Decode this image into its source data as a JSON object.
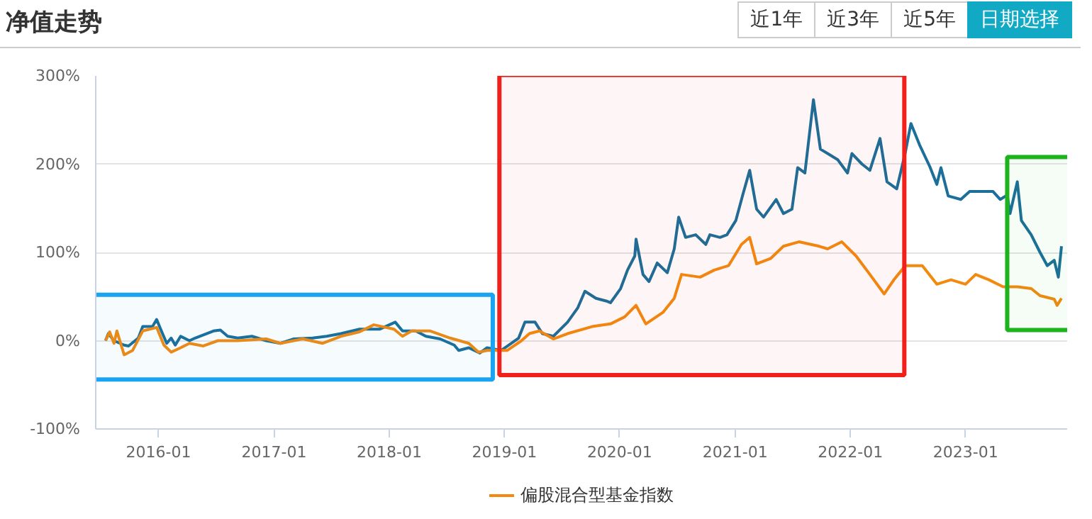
{
  "chart_data": {
    "type": "line",
    "title": "净值走势",
    "annotations": [
      "近1年",
      "近3年",
      "近5年",
      "日期选择"
    ],
    "xlim": [
      "2015-06-16",
      "2023-11-19"
    ],
    "xticks": [
      {
        "value": "2016-01-01",
        "label": "2016-01"
      },
      {
        "value": "2017-01-01",
        "label": "2017-01"
      },
      {
        "value": "2018-01-01",
        "label": "2018-01"
      },
      {
        "value": "2019-01-01",
        "label": "2019-01"
      },
      {
        "value": "2020-01-01",
        "label": "2020-01"
      },
      {
        "value": "2021-01-01",
        "label": "2021-01"
      },
      {
        "value": "2022-01-01",
        "label": "2022-01"
      },
      {
        "value": "2023-01-01",
        "label": "2023-01"
      }
    ],
    "ylim": [
      -100,
      300
    ],
    "yticks": [
      {
        "value": -100,
        "label": "-100%"
      },
      {
        "value": 0,
        "label": "0%"
      },
      {
        "value": 100,
        "label": "100%"
      },
      {
        "value": 200,
        "label": "200%"
      },
      {
        "value": 300,
        "label": "300%"
      }
    ],
    "grid": "y",
    "legend": "bottom",
    "marker": "none",
    "line_style": "solid",
    "bands": [
      {
        "axis": "x",
        "from": "2015-05-29",
        "to": "2018-11-25",
        "color": "#1aa3f0"
      },
      {
        "axis": "x",
        "from": "2018-12-16",
        "to": "2022-06-21",
        "color": "#f0201a"
      },
      {
        "axis": "x",
        "from": "2023-05-13",
        "to": "2024-01-04",
        "color": "#1db31d"
      }
    ],
    "series": [
      {
        "color": "#1b6f9a",
        "x": [
          "2015-07-17",
          "2015-07-26",
          "2015-08-13",
          "2015-09-14",
          "2015-09-28",
          "2015-10-29",
          "2015-11-12",
          "2015-12-13",
          "2015-12-26",
          "2016-01-10",
          "2016-01-27",
          "2016-02-10",
          "2016-02-23",
          "2016-03-11",
          "2016-04-08",
          "2016-04-26",
          "2016-06-23",
          "2016-07-15",
          "2016-08-07",
          "2016-09-08",
          "2016-10-23",
          "2016-12-07",
          "2017-01-21",
          "2017-03-05",
          "2017-05-03",
          "2017-06-17",
          "2017-08-01",
          "2017-09-29",
          "2017-12-01",
          "2018-01-20",
          "2018-02-12",
          "2018-03-26",
          "2018-04-27",
          "2018-06-11",
          "2018-07-26",
          "2018-08-09",
          "2018-09-10",
          "2018-10-15",
          "2018-11-07",
          "2018-12-22",
          "2019-01-23",
          "2019-02-15",
          "2019-03-07",
          "2019-04-08",
          "2019-05-01",
          "2019-06-05",
          "2019-07-20",
          "2019-08-21",
          "2019-09-13",
          "2019-10-18",
          "2019-11-19",
          "2019-12-03",
          "2020-01-04",
          "2020-01-26",
          "2020-02-18",
          "2020-02-22",
          "2020-03-15",
          "2020-04-03",
          "2020-04-29",
          "2020-05-31",
          "2020-06-22",
          "2020-07-06",
          "2020-07-28",
          "2020-08-29",
          "2020-09-30",
          "2020-10-13",
          "2020-11-14",
          "2020-12-06",
          "2021-01-03",
          "2021-01-25",
          "2021-02-16",
          "2021-03-10",
          "2021-04-01",
          "2021-05-11",
          "2021-06-03",
          "2021-06-30",
          "2021-07-18",
          "2021-08-10",
          "2021-09-06",
          "2021-09-28",
          "2021-10-21",
          "2021-11-22",
          "2021-12-23",
          "2022-01-06",
          "2022-02-07",
          "2022-03-04",
          "2022-04-05",
          "2022-04-27",
          "2022-05-28",
          "2022-06-24",
          "2022-07-12",
          "2022-08-08",
          "2022-09-10",
          "2022-10-02",
          "2022-10-15",
          "2022-11-07",
          "2022-12-17",
          "2023-01-14",
          "2023-02-27",
          "2023-03-29",
          "2023-04-21",
          "2023-05-13",
          "2023-05-22",
          "2023-06-14",
          "2023-06-27",
          "2023-07-28",
          "2023-08-25",
          "2023-09-17",
          "2023-10-09",
          "2023-10-22",
          "2023-11-01"
        ],
        "values": [
          0,
          8,
          0,
          -5,
          -6,
          3,
          16,
          16,
          24,
          11,
          -3,
          3,
          -5,
          5,
          0,
          3,
          11,
          12,
          5,
          3,
          5,
          0,
          -3,
          2,
          3,
          5,
          8,
          13,
          13,
          21,
          11,
          11,
          5,
          2,
          -5,
          -11,
          -8,
          -14,
          -8,
          -11,
          -3,
          3,
          21,
          21,
          8,
          5,
          21,
          37,
          56,
          48,
          45,
          43,
          59,
          80,
          96,
          115,
          75,
          67,
          88,
          77,
          104,
          140,
          117,
          120,
          109,
          120,
          117,
          120,
          136,
          165,
          193,
          149,
          140,
          160,
          144,
          149,
          196,
          190,
          273,
          217,
          212,
          205,
          190,
          212,
          200,
          193,
          229,
          180,
          172,
          213,
          246,
          222,
          197,
          177,
          196,
          164,
          160,
          169,
          169,
          169,
          160,
          165,
          144,
          180,
          136,
          120,
          100,
          85,
          91,
          72,
          107
        ]
      },
      {
        "name": "偏股混合型基金指数",
        "color": "#f28a10",
        "x": [
          "2015-07-17",
          "2015-07-30",
          "2015-08-13",
          "2015-08-22",
          "2015-09-14",
          "2015-10-11",
          "2015-11-12",
          "2015-12-26",
          "2016-01-18",
          "2016-02-10",
          "2016-03-11",
          "2016-04-08",
          "2016-05-22",
          "2016-07-07",
          "2016-09-08",
          "2016-12-07",
          "2017-01-21",
          "2017-04-02",
          "2017-06-04",
          "2017-08-01",
          "2017-09-29",
          "2017-11-13",
          "2018-01-16",
          "2018-02-12",
          "2018-03-13",
          "2018-05-11",
          "2018-07-13",
          "2018-09-10",
          "2018-10-11",
          "2018-11-07",
          "2019-01-10",
          "2019-02-24",
          "2019-03-21",
          "2019-04-22",
          "2019-06-05",
          "2019-07-20",
          "2019-10-06",
          "2019-12-03",
          "2020-01-17",
          "2020-02-22",
          "2020-03-24",
          "2020-05-17",
          "2020-06-22",
          "2020-07-15",
          "2020-09-12",
          "2020-10-27",
          "2020-12-11",
          "2021-01-21",
          "2021-02-16",
          "2021-03-10",
          "2021-04-23",
          "2021-06-03",
          "2021-07-22",
          "2021-09-24",
          "2021-10-21",
          "2021-12-05",
          "2022-01-19",
          "2022-03-04",
          "2022-04-18",
          "2022-05-19",
          "2022-06-24",
          "2022-08-17",
          "2022-10-02",
          "2022-11-16",
          "2023-01-01",
          "2023-02-02",
          "2023-03-16",
          "2023-04-30",
          "2023-06-14",
          "2023-07-28",
          "2023-08-25",
          "2023-10-09",
          "2023-10-18",
          "2023-11-01"
        ],
        "values": [
          0,
          10,
          -3,
          11,
          -16,
          -11,
          11,
          15,
          -5,
          -13,
          -8,
          -3,
          -6,
          0,
          0,
          2,
          -3,
          2,
          -3,
          5,
          10,
          18,
          13,
          5,
          11,
          11,
          3,
          -3,
          -13,
          -11,
          -11,
          0,
          8,
          11,
          2,
          8,
          16,
          19,
          27,
          40,
          19,
          32,
          48,
          75,
          72,
          80,
          85,
          109,
          117,
          87,
          93,
          107,
          112,
          107,
          104,
          112,
          96,
          75,
          53,
          69,
          85,
          85,
          64,
          69,
          64,
          75,
          69,
          61,
          61,
          59,
          51,
          47,
          40,
          48
        ]
      }
    ]
  }
}
